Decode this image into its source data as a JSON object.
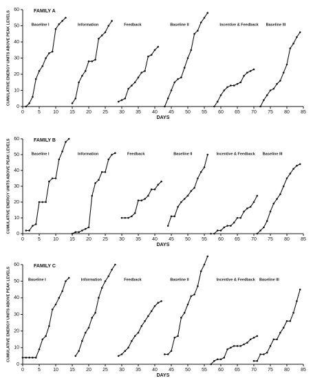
{
  "chart_data": [
    {
      "type": "line",
      "title": "FAMILY A",
      "xlabel": "DAYS",
      "ylabel": "CUMULATIVE ENERGY UNITS ABOVE PEAK LEVELS",
      "xlim": [
        0,
        85
      ],
      "ylim": [
        0,
        60
      ],
      "xticks": [
        0,
        5,
        10,
        15,
        20,
        25,
        30,
        35,
        40,
        45,
        50,
        55,
        60,
        65,
        70,
        75,
        80,
        85
      ],
      "yticks": [
        0,
        10,
        20,
        30,
        40,
        50,
        60
      ],
      "series": [
        {
          "name": "Baseline I",
          "color": "#111111",
          "x": [
            1,
            2,
            3,
            4,
            5,
            6,
            7,
            8,
            9,
            10,
            11,
            12,
            13
          ],
          "values": [
            0,
            2,
            6,
            17,
            22,
            25,
            30,
            33,
            34,
            48,
            51,
            53,
            55
          ]
        },
        {
          "name": "Information",
          "color": "#111111",
          "x": [
            15,
            16,
            17,
            18,
            19,
            20,
            21,
            22,
            23,
            24,
            25,
            26,
            27
          ],
          "values": [
            2,
            5,
            15,
            19,
            22,
            28,
            28,
            29,
            42,
            44,
            46,
            50,
            53
          ]
        },
        {
          "name": "Feedback",
          "color": "#111111",
          "x": [
            29,
            30,
            31,
            32,
            33,
            34,
            35,
            36,
            37,
            38,
            39,
            40,
            41
          ],
          "values": [
            3,
            4,
            5,
            11,
            13,
            15,
            18,
            21,
            22,
            31,
            32,
            35,
            37
          ]
        },
        {
          "name": "Baseline II",
          "color": "#111111",
          "x": [
            43,
            44,
            45,
            46,
            47,
            48,
            49,
            50,
            51,
            52,
            53,
            54,
            55,
            56
          ],
          "values": [
            0,
            5,
            10,
            15,
            17,
            18,
            24,
            30,
            35,
            45,
            47,
            52,
            55,
            58
          ]
        },
        {
          "name": "Incentive & Feedback",
          "color": "#111111",
          "x": [
            58,
            59,
            60,
            61,
            62,
            63,
            64,
            65,
            66,
            67,
            68,
            69,
            70
          ],
          "values": [
            0,
            3,
            7,
            10,
            12,
            13,
            13,
            14,
            15,
            19,
            21,
            22,
            23
          ]
        },
        {
          "name": "Baseline III",
          "color": "#111111",
          "x": [
            72,
            73,
            74,
            75,
            76,
            77,
            78,
            79,
            80,
            81,
            82,
            83,
            84
          ],
          "values": [
            0,
            4,
            7,
            10,
            11,
            14,
            16,
            21,
            26,
            36,
            39,
            43,
            46
          ]
        }
      ]
    },
    {
      "type": "line",
      "title": "FAMILY B",
      "xlabel": "DAYS",
      "ylabel": "CUMULATIVE ENERGY UNITS ABOVE PEAK LEVELS",
      "xlim": [
        0,
        85
      ],
      "ylim": [
        0,
        60
      ],
      "xticks": [
        0,
        5,
        10,
        15,
        20,
        25,
        30,
        35,
        40,
        45,
        50,
        55,
        60,
        65,
        70,
        75,
        80,
        85
      ],
      "yticks": [
        0,
        10,
        20,
        30,
        40,
        50,
        60
      ],
      "series": [
        {
          "name": "Baseline I",
          "color": "#111111",
          "x": [
            1,
            2,
            3,
            4,
            5,
            6,
            7,
            8,
            9,
            10,
            11,
            12,
            13,
            14
          ],
          "values": [
            2,
            2,
            5,
            6,
            20,
            20,
            20,
            33,
            35,
            35,
            47,
            52,
            58,
            60
          ]
        },
        {
          "name": "Information",
          "color": "#111111",
          "x": [
            15,
            16,
            17,
            18,
            19,
            20,
            21,
            22,
            23,
            24,
            25,
            26,
            27,
            28
          ],
          "values": [
            0,
            1,
            1,
            2,
            3,
            4,
            24,
            32,
            34,
            39,
            39,
            47,
            50,
            51
          ]
        },
        {
          "name": "Feedback",
          "color": "#111111",
          "x": [
            30,
            31,
            32,
            33,
            34,
            35,
            36,
            37,
            38,
            39,
            40,
            41,
            42
          ],
          "values": [
            10,
            10,
            10,
            11,
            13,
            21,
            21,
            22,
            24,
            28,
            28,
            31,
            33
          ]
        },
        {
          "name": "Baseline II",
          "color": "#111111",
          "x": [
            44,
            45,
            46,
            47,
            48,
            49,
            50,
            51,
            52,
            53,
            54,
            55,
            56
          ],
          "values": [
            5,
            11,
            11,
            17,
            20,
            22,
            24,
            27,
            29,
            35,
            39,
            42,
            50
          ]
        },
        {
          "name": "Incentive & Feedback",
          "color": "#111111",
          "x": [
            57,
            58,
            59,
            60,
            61,
            62,
            63,
            64,
            65,
            66,
            67,
            68,
            69,
            70,
            71
          ],
          "values": [
            0,
            0,
            2,
            2,
            4,
            5,
            5,
            7,
            10,
            10,
            14,
            16,
            17,
            20,
            24
          ]
        },
        {
          "name": "Baseline III",
          "color": "#111111",
          "x": [
            71,
            72,
            73,
            74,
            75,
            76,
            77,
            78,
            79,
            80,
            81,
            82,
            83,
            84
          ],
          "values": [
            0,
            2,
            4,
            8,
            14,
            19,
            22,
            25,
            30,
            35,
            38,
            41,
            43,
            44
          ]
        }
      ]
    },
    {
      "type": "line",
      "title": "FAMILY C",
      "xlabel": "DAYS",
      "ylabel": "CUMULATIVE ENERGY UNITS ABOVE PEAK LEVELS",
      "xlim": [
        0,
        85
      ],
      "ylim": [
        0,
        60
      ],
      "xticks": [
        0,
        5,
        10,
        15,
        20,
        25,
        30,
        35,
        40,
        45,
        50,
        55,
        60,
        65,
        70,
        75,
        80,
        85
      ],
      "yticks": [
        0,
        10,
        20,
        30,
        40,
        50,
        60
      ],
      "series": [
        {
          "name": "Baseline I",
          "color": "#111111",
          "x": [
            0,
            1,
            2,
            3,
            4,
            5,
            6,
            7,
            8,
            9,
            10,
            11,
            12,
            13,
            14
          ],
          "values": [
            4,
            4,
            4,
            4,
            4,
            9,
            15,
            17,
            23,
            33,
            36,
            40,
            44,
            50,
            52
          ]
        },
        {
          "name": "Information",
          "color": "#111111",
          "x": [
            16,
            17,
            18,
            19,
            20,
            21,
            22,
            23,
            24,
            25,
            26,
            27,
            28
          ],
          "values": [
            5,
            8,
            14,
            19,
            22,
            28,
            31,
            40,
            46,
            50,
            53,
            57,
            60
          ]
        },
        {
          "name": "Feedback",
          "color": "#111111",
          "x": [
            29,
            30,
            31,
            32,
            33,
            34,
            35,
            36,
            37,
            38,
            39,
            40,
            41,
            42
          ],
          "values": [
            5,
            6,
            8,
            10,
            14,
            17,
            19,
            23,
            26,
            29,
            32,
            35,
            37,
            38
          ]
        },
        {
          "name": "Baseline II",
          "color": "#111111",
          "x": [
            43,
            44,
            45,
            46,
            47,
            48,
            49,
            50,
            51,
            52,
            53,
            54,
            55,
            56
          ],
          "values": [
            6,
            6,
            8,
            16,
            17,
            28,
            31,
            36,
            41,
            42,
            47,
            56,
            60,
            65
          ]
        },
        {
          "name": "Incentive & Feedback",
          "color": "#111111",
          "x": [
            57,
            58,
            59,
            60,
            61,
            62,
            63,
            64,
            65,
            66,
            67,
            68,
            69,
            70,
            71
          ],
          "values": [
            0,
            2,
            3,
            3,
            4,
            9,
            10,
            11,
            11,
            11,
            12,
            13,
            15,
            16,
            17
          ]
        },
        {
          "name": "Baseline III",
          "color": "#111111",
          "x": [
            70,
            71,
            72,
            73,
            74,
            75,
            76,
            77,
            78,
            79,
            80,
            81,
            82,
            83,
            84
          ],
          "values": [
            2,
            2,
            6,
            6,
            7,
            11,
            15,
            15,
            19,
            22,
            26,
            26,
            31,
            38,
            45
          ]
        }
      ]
    }
  ]
}
